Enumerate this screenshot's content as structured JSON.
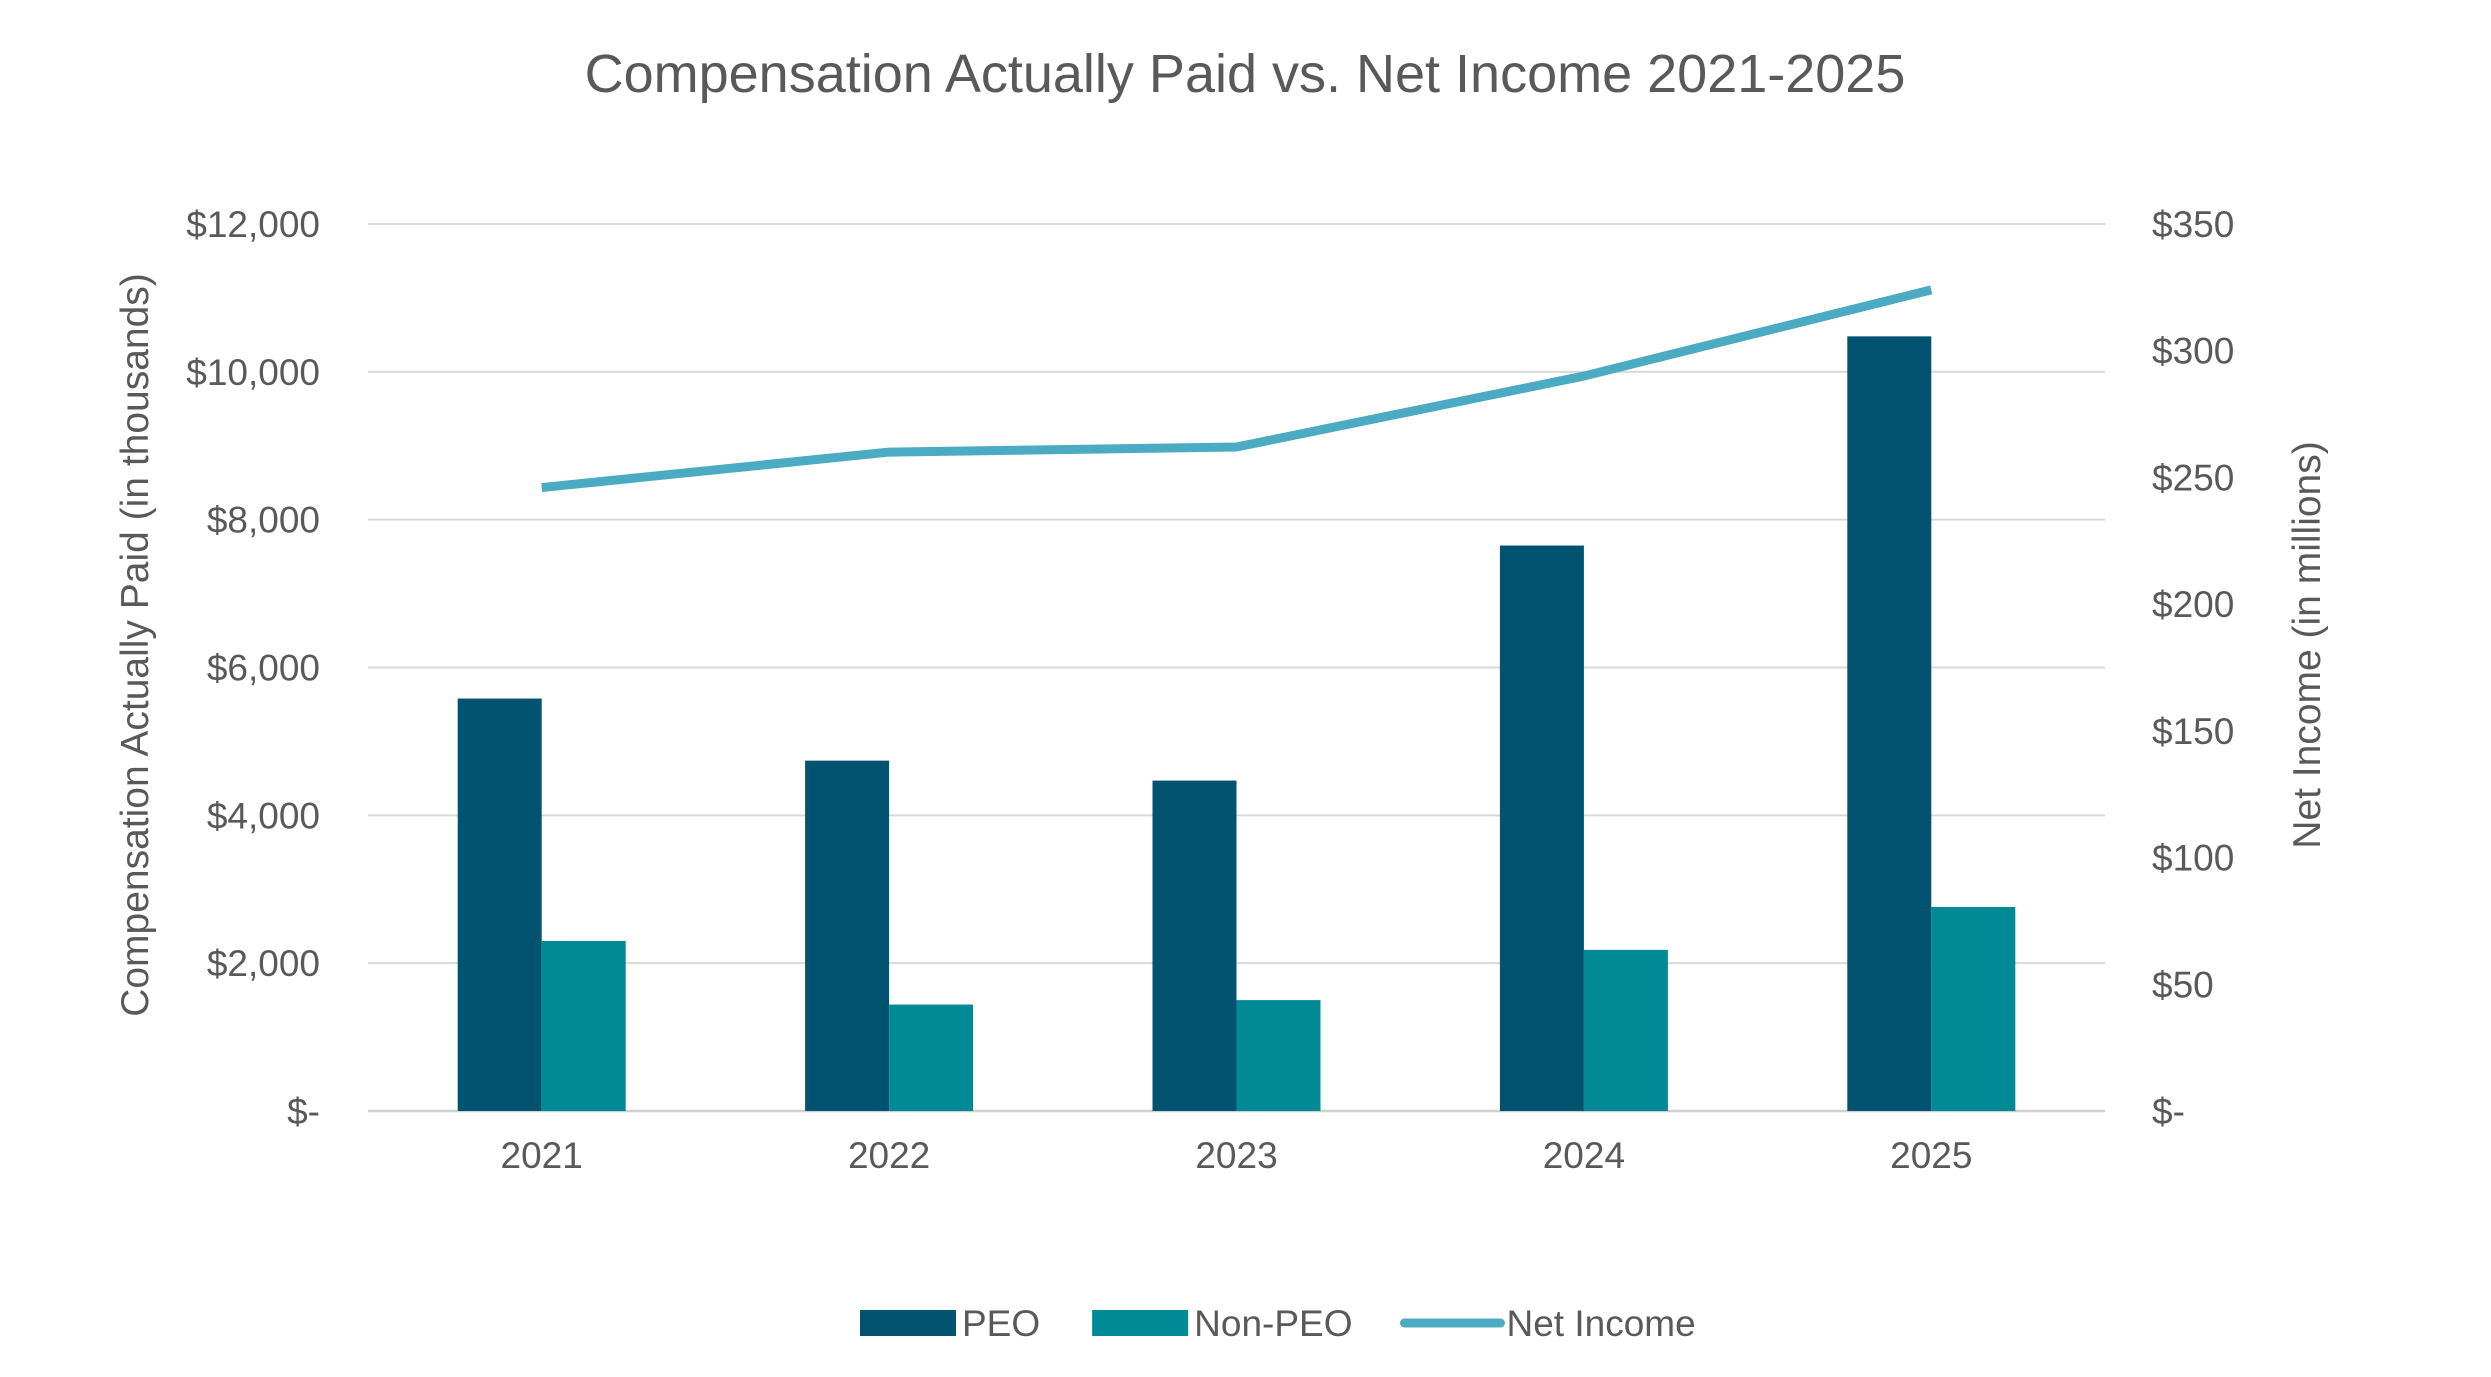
{
  "chart_data": {
    "type": "bar",
    "title": "Compensation Actually Paid vs. Net Income 2021-2025",
    "categories": [
      "2021",
      "2022",
      "2023",
      "2024",
      "2025"
    ],
    "ylabel": "Compensation Actually Paid (in thousands)",
    "y2label": "Net Income (in millions)",
    "ylim": [
      0,
      12000
    ],
    "y2lim": [
      0,
      350
    ],
    "yticks": [
      {
        "value": 0,
        "label": "$-"
      },
      {
        "value": 2000,
        "label": "$2,000"
      },
      {
        "value": 4000,
        "label": "$4,000"
      },
      {
        "value": 6000,
        "label": "$6,000"
      },
      {
        "value": 8000,
        "label": "$8,000"
      },
      {
        "value": 10000,
        "label": "$10,000"
      },
      {
        "value": 12000,
        "label": "$12,000"
      }
    ],
    "y2ticks": [
      {
        "value": 0,
        "label": "$-"
      },
      {
        "value": 50,
        "label": "$50"
      },
      {
        "value": 100,
        "label": "$100"
      },
      {
        "value": 150,
        "label": "$150"
      },
      {
        "value": 200,
        "label": "$200"
      },
      {
        "value": 250,
        "label": "$250"
      },
      {
        "value": 300,
        "label": "$300"
      },
      {
        "value": 350,
        "label": "$350"
      }
    ],
    "grid": true,
    "legend_position": "bottom",
    "series": [
      {
        "name": "PEO",
        "type": "bar",
        "axis": "left",
        "color": "#02536f",
        "values": [
          5580,
          4740,
          4470,
          7650,
          10480
        ]
      },
      {
        "name": "Non-PEO",
        "type": "bar",
        "axis": "left",
        "color": "#008a96",
        "values": [
          2300,
          1440,
          1500,
          2180,
          2760
        ]
      },
      {
        "name": "Net Income",
        "type": "line",
        "axis": "right",
        "color": "#4aabc3",
        "values": [
          246,
          260,
          262,
          290,
          324
        ]
      }
    ],
    "colors": {
      "text": "#595959",
      "gridline": "#d9d9d9",
      "axis": "#d0d0d0"
    }
  }
}
